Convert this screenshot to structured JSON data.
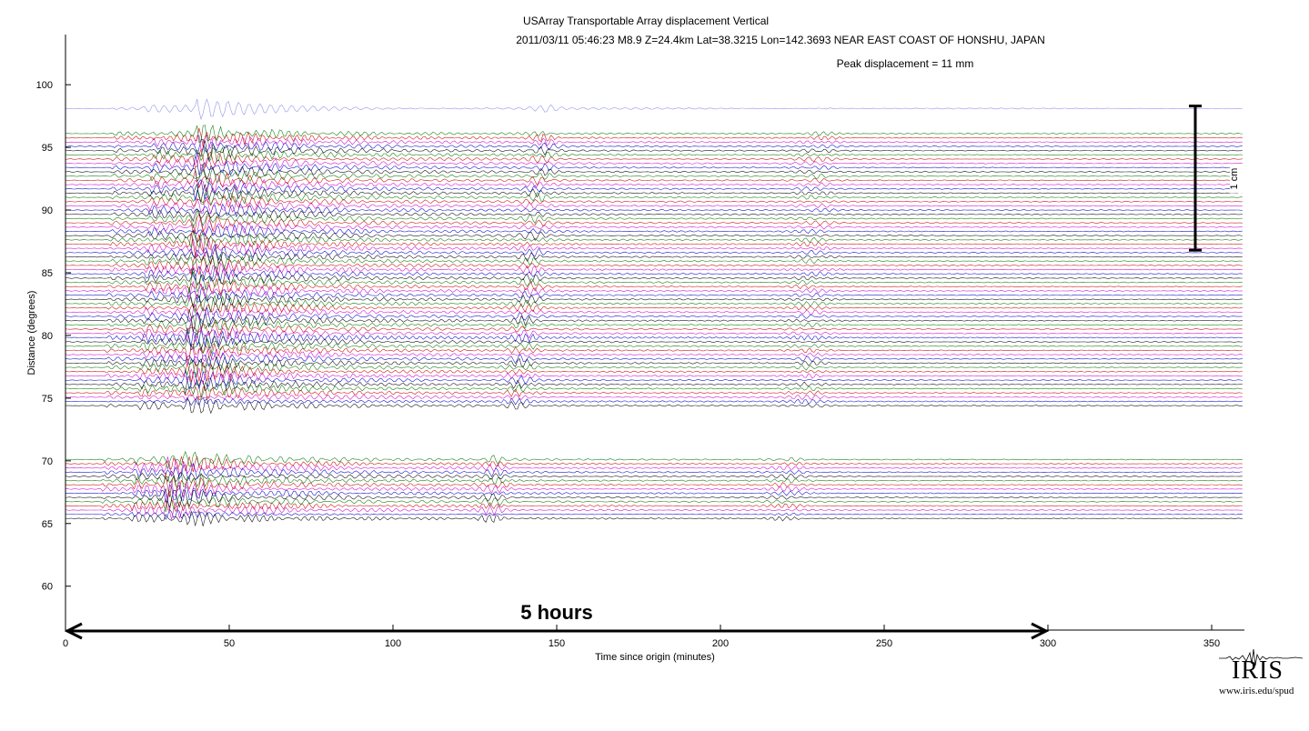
{
  "chart_data": {
    "type": "line",
    "title_line1": "USArray Transportable Array displacement   Vertical",
    "title_line2": "2011/03/11  05:46:23  M8.9  Z=24.4km  Lat=38.3215 Lon=142.3693  NEAR EAST COAST OF HONSHU, JAPAN",
    "peak_text": "Peak displacement = 11 mm",
    "xlabel": "Time since origin (minutes)",
    "ylabel": "Distance (degrees)",
    "xlim": [
      0,
      360
    ],
    "ylim": [
      56.5,
      104
    ],
    "xticks": [
      0,
      50,
      100,
      150,
      200,
      250,
      300,
      350
    ],
    "yticks": [
      60,
      65,
      70,
      75,
      80,
      85,
      90,
      95,
      100
    ],
    "grid": false,
    "scale_bar": {
      "label": "1 cm",
      "x_minutes": 345,
      "y_from": 86.8,
      "y_to": 98.3
    },
    "duration_arrow": {
      "label": "5 hours",
      "x_from": 0,
      "x_to": 300
    },
    "trace_colors": [
      "#000000",
      "#0000cc",
      "#cc00cc",
      "#cc0000",
      "#007700"
    ],
    "trace_groups": [
      {
        "distance_from": 65.4,
        "distance_to": 70.1,
        "p_arrival_min": 11,
        "s_arrival_min": 20,
        "surface_arrival_min": 30
      },
      {
        "distance_from": 74.4,
        "distance_to": 96.1,
        "p_arrival_min": 12,
        "s_arrival_min": 22,
        "surface_arrival_min": 36
      },
      {
        "distance_from": 98.1,
        "distance_to": 98.1,
        "p_arrival_min": 14,
        "s_arrival_min": 24,
        "surface_arrival_min": 40
      }
    ]
  },
  "logo": {
    "word": "IRIS",
    "url": "www.iris.edu/spud"
  }
}
